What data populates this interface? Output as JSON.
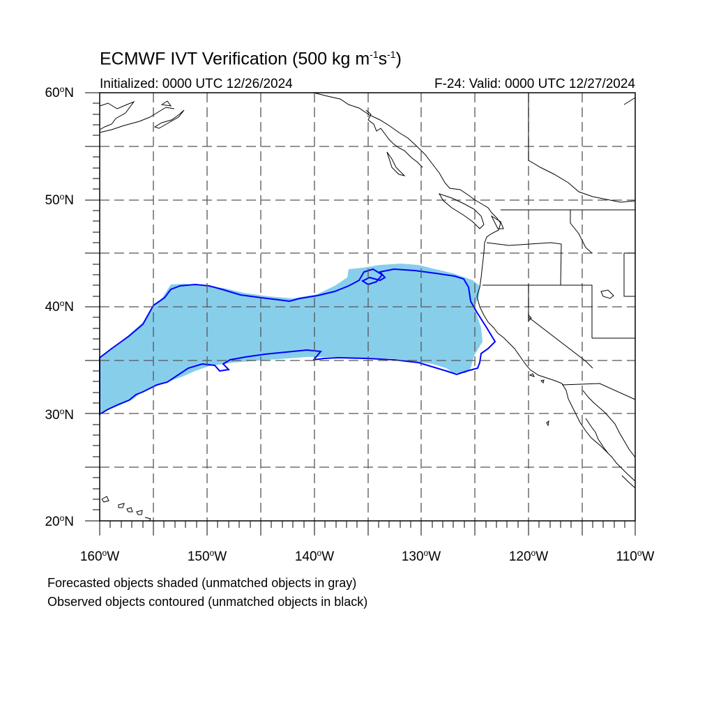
{
  "title": {
    "prefix": "ECMWF IVT Verification (500 kg m",
    "exp1": "-1",
    "mid": "s",
    "exp2": "-1",
    "suffix": ")"
  },
  "initialized": "Initialized: 0000 UTC 12/26/2024",
  "valid": "F-24: Valid: 0000 UTC 12/27/2024",
  "lat_labels": [
    {
      "num": "60",
      "hemi": "N"
    },
    {
      "num": "50",
      "hemi": "N"
    },
    {
      "num": "40",
      "hemi": "N"
    },
    {
      "num": "30",
      "hemi": "N"
    },
    {
      "num": "20",
      "hemi": "N"
    }
  ],
  "lon_labels": [
    {
      "num": "160",
      "hemi": "W"
    },
    {
      "num": "150",
      "hemi": "W"
    },
    {
      "num": "140",
      "hemi": "W"
    },
    {
      "num": "130",
      "hemi": "W"
    },
    {
      "num": "120",
      "hemi": "W"
    },
    {
      "num": "110",
      "hemi": "W"
    }
  ],
  "degree_symbol": "o",
  "footnote_forecast": "Forecasted objects shaded (unmatched objects in gray)",
  "footnote_observed": "Observed objects contoured (unmatched objects in black)",
  "colors": {
    "forecast_fill": "#87ceeb",
    "observed_contour": "#0000ff",
    "coastline": "#000000",
    "grid": "#555555"
  },
  "map_extent": {
    "lon_min": -160,
    "lon_max": -110,
    "lat_min": 20,
    "lat_max": 60
  }
}
